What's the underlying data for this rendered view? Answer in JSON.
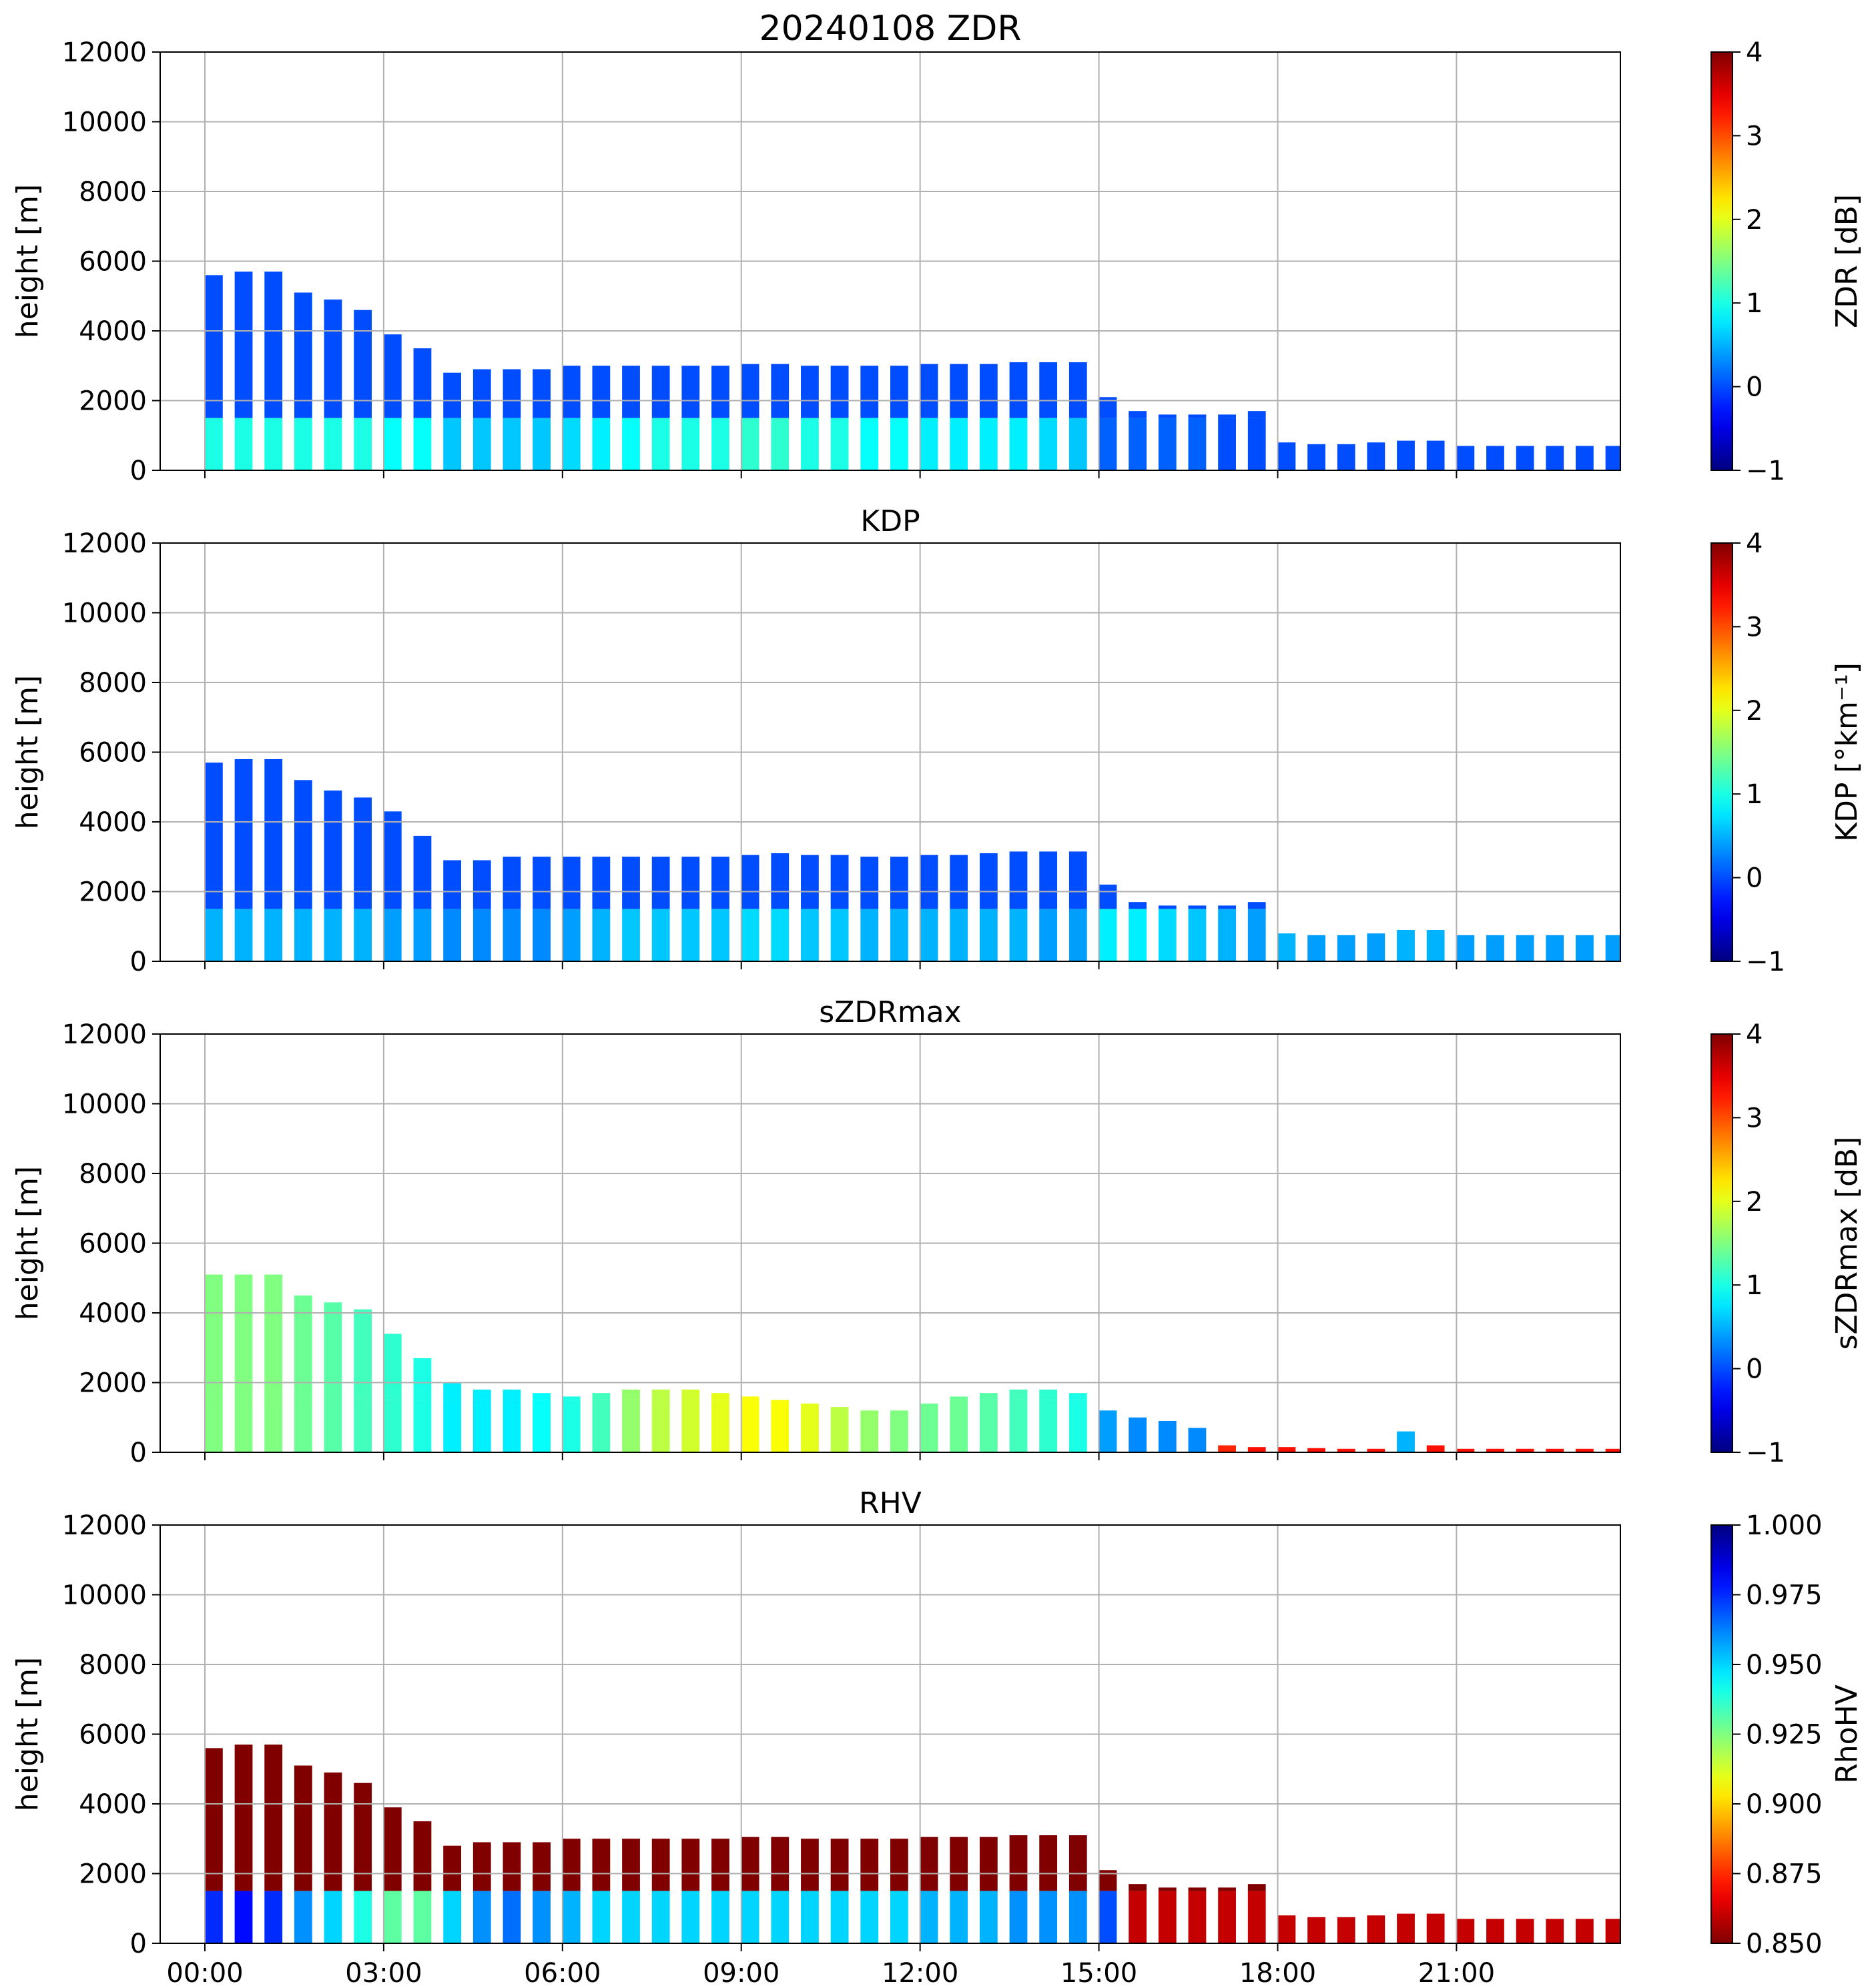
{
  "chart_data": [
    {
      "type": "heatmap",
      "title": "20240108 ZDR",
      "ylabel": "height [m]",
      "ylim": [
        0,
        12000
      ],
      "yticks": [
        "0",
        "2000",
        "4000",
        "6000",
        "8000",
        "10000",
        "12000"
      ],
      "xlim_hours": [
        -0.75,
        23.75
      ],
      "grid": true,
      "colorbar": {
        "label": "ZDR [dB]",
        "range": [
          -1,
          4
        ],
        "ticks": [
          "−1",
          "0",
          "1",
          "2",
          "3",
          "4"
        ],
        "colormap": "jet"
      },
      "echo_top_m": [
        5600,
        5700,
        5700,
        5100,
        4900,
        4600,
        3900,
        3500,
        2800,
        2900,
        2900,
        2900,
        3000,
        3000,
        3000,
        3000,
        3000,
        3000,
        3050,
        3050,
        3000,
        3000,
        3000,
        3000,
        3050,
        3050,
        3050,
        3100,
        3100,
        3100,
        2100,
        1700,
        1600,
        1600,
        1600,
        1700,
        800,
        750,
        750,
        800,
        850,
        850,
        700,
        700,
        700,
        700,
        700,
        700
      ],
      "mean_value_low": [
        1.0,
        1.0,
        1.0,
        1.0,
        1.0,
        1.0,
        0.9,
        0.9,
        0.6,
        0.6,
        0.6,
        0.6,
        0.7,
        0.8,
        0.9,
        1.0,
        1.0,
        1.0,
        1.1,
        1.1,
        1.0,
        1.0,
        0.9,
        0.9,
        0.8,
        0.8,
        0.8,
        0.8,
        0.7,
        0.6,
        0.1,
        0.1,
        0.1,
        0.1,
        0.0,
        0.0,
        0.0,
        0.0,
        0.0,
        0.0,
        0.0,
        0.0,
        0.0,
        0.0,
        0.0,
        0.0,
        0.0,
        0.0
      ]
    },
    {
      "type": "heatmap",
      "title": "KDP",
      "ylabel": "height [m]",
      "ylim": [
        0,
        12000
      ],
      "yticks": [
        "0",
        "2000",
        "4000",
        "6000",
        "8000",
        "10000",
        "12000"
      ],
      "xlim_hours": [
        -0.75,
        23.75
      ],
      "grid": true,
      "colorbar": {
        "label": "KDP [°km⁻¹]",
        "range": [
          -1,
          4
        ],
        "ticks": [
          "−1",
          "0",
          "1",
          "2",
          "3",
          "4"
        ],
        "colormap": "jet"
      },
      "echo_top_m": [
        5700,
        5800,
        5800,
        5200,
        4900,
        4700,
        4300,
        3600,
        2900,
        2900,
        3000,
        3000,
        3000,
        3000,
        3000,
        3000,
        3000,
        3000,
        3050,
        3100,
        3050,
        3050,
        3000,
        3000,
        3050,
        3050,
        3100,
        3150,
        3150,
        3150,
        2200,
        1700,
        1600,
        1600,
        1600,
        1700,
        800,
        750,
        750,
        800,
        900,
        900,
        750,
        750,
        750,
        750,
        750,
        750
      ],
      "mean_value_low": [
        0.5,
        0.5,
        0.5,
        0.5,
        0.5,
        0.5,
        0.4,
        0.4,
        0.3,
        0.3,
        0.3,
        0.3,
        0.4,
        0.5,
        0.6,
        0.6,
        0.6,
        0.6,
        0.7,
        0.7,
        0.6,
        0.6,
        0.5,
        0.5,
        0.5,
        0.5,
        0.5,
        0.5,
        0.4,
        0.4,
        0.8,
        0.8,
        0.7,
        0.6,
        0.5,
        0.4,
        0.5,
        0.4,
        0.4,
        0.4,
        0.5,
        0.5,
        0.4,
        0.4,
        0.4,
        0.4,
        0.4,
        0.4
      ]
    },
    {
      "type": "heatmap",
      "title": "sZDRmax",
      "ylabel": "height [m]",
      "ylim": [
        0,
        12000
      ],
      "yticks": [
        "0",
        "2000",
        "4000",
        "6000",
        "8000",
        "10000",
        "12000"
      ],
      "xlim_hours": [
        -0.75,
        23.75
      ],
      "grid": true,
      "colorbar": {
        "label": "sZDRmax [dB]",
        "range": [
          -1,
          4
        ],
        "ticks": [
          "−1",
          "0",
          "1",
          "2",
          "3",
          "4"
        ],
        "colormap": "jet"
      },
      "echo_top_m": [
        5100,
        5100,
        5100,
        4500,
        4300,
        4100,
        3400,
        2700,
        2000,
        1800,
        1800,
        1700,
        1600,
        1700,
        1800,
        1800,
        1800,
        1700,
        1600,
        1500,
        1400,
        1300,
        1200,
        1200,
        1400,
        1600,
        1700,
        1800,
        1800,
        1700,
        1200,
        1000,
        900,
        700,
        200,
        150,
        150,
        120,
        100,
        100,
        600,
        200,
        100,
        100,
        100,
        100,
        100,
        100
      ],
      "mean_value_low": [
        1.5,
        1.5,
        1.5,
        1.4,
        1.3,
        1.2,
        1.1,
        1.0,
        0.8,
        0.8,
        0.8,
        0.9,
        1.0,
        1.2,
        1.6,
        1.8,
        1.9,
        2.0,
        2.1,
        2.1,
        2.0,
        1.8,
        1.6,
        1.5,
        1.4,
        1.4,
        1.3,
        1.2,
        1.1,
        1.0,
        0.4,
        0.3,
        0.3,
        0.3,
        3.2,
        3.3,
        3.3,
        3.3,
        3.3,
        3.3,
        0.5,
        3.3,
        3.3,
        3.3,
        3.3,
        3.3,
        3.3,
        3.3
      ]
    },
    {
      "type": "heatmap",
      "title": "RHV",
      "ylabel": "height [m]",
      "ylim": [
        0,
        12000
      ],
      "yticks": [
        "0",
        "2000",
        "4000",
        "6000",
        "8000",
        "10000",
        "12000"
      ],
      "xlim_hours": [
        -0.75,
        23.75
      ],
      "xticks": [
        "00:00",
        "03:00",
        "06:00",
        "09:00",
        "12:00",
        "15:00",
        "18:00",
        "21:00"
      ],
      "grid": true,
      "colorbar": {
        "label": "RhoHV",
        "range": [
          0.85,
          1.0
        ],
        "ticks": [
          "0.850",
          "0.875",
          "0.900",
          "0.925",
          "0.950",
          "0.975",
          "1.000"
        ],
        "colormap": "jet_r"
      },
      "echo_top_m": [
        5600,
        5700,
        5700,
        5100,
        4900,
        4600,
        3900,
        3500,
        2800,
        2900,
        2900,
        2900,
        3000,
        3000,
        3000,
        3000,
        3000,
        3000,
        3050,
        3050,
        3000,
        3000,
        3000,
        3000,
        3050,
        3050,
        3050,
        3100,
        3100,
        3100,
        2100,
        1700,
        1600,
        1600,
        1600,
        1700,
        800,
        750,
        750,
        800,
        850,
        850,
        700,
        700,
        700,
        700,
        700,
        700
      ],
      "mean_value_low": [
        0.975,
        0.98,
        0.975,
        0.96,
        0.95,
        0.94,
        0.93,
        0.93,
        0.95,
        0.96,
        0.965,
        0.96,
        0.955,
        0.95,
        0.95,
        0.95,
        0.95,
        0.95,
        0.95,
        0.95,
        0.95,
        0.95,
        0.95,
        0.95,
        0.955,
        0.955,
        0.955,
        0.96,
        0.96,
        0.96,
        0.97,
        0.86,
        0.86,
        0.86,
        0.86,
        0.86,
        0.86,
        0.86,
        0.86,
        0.86,
        0.86,
        0.86,
        0.86,
        0.86,
        0.86,
        0.86,
        0.86,
        0.86
      ],
      "mean_value_high": 0.85
    }
  ]
}
